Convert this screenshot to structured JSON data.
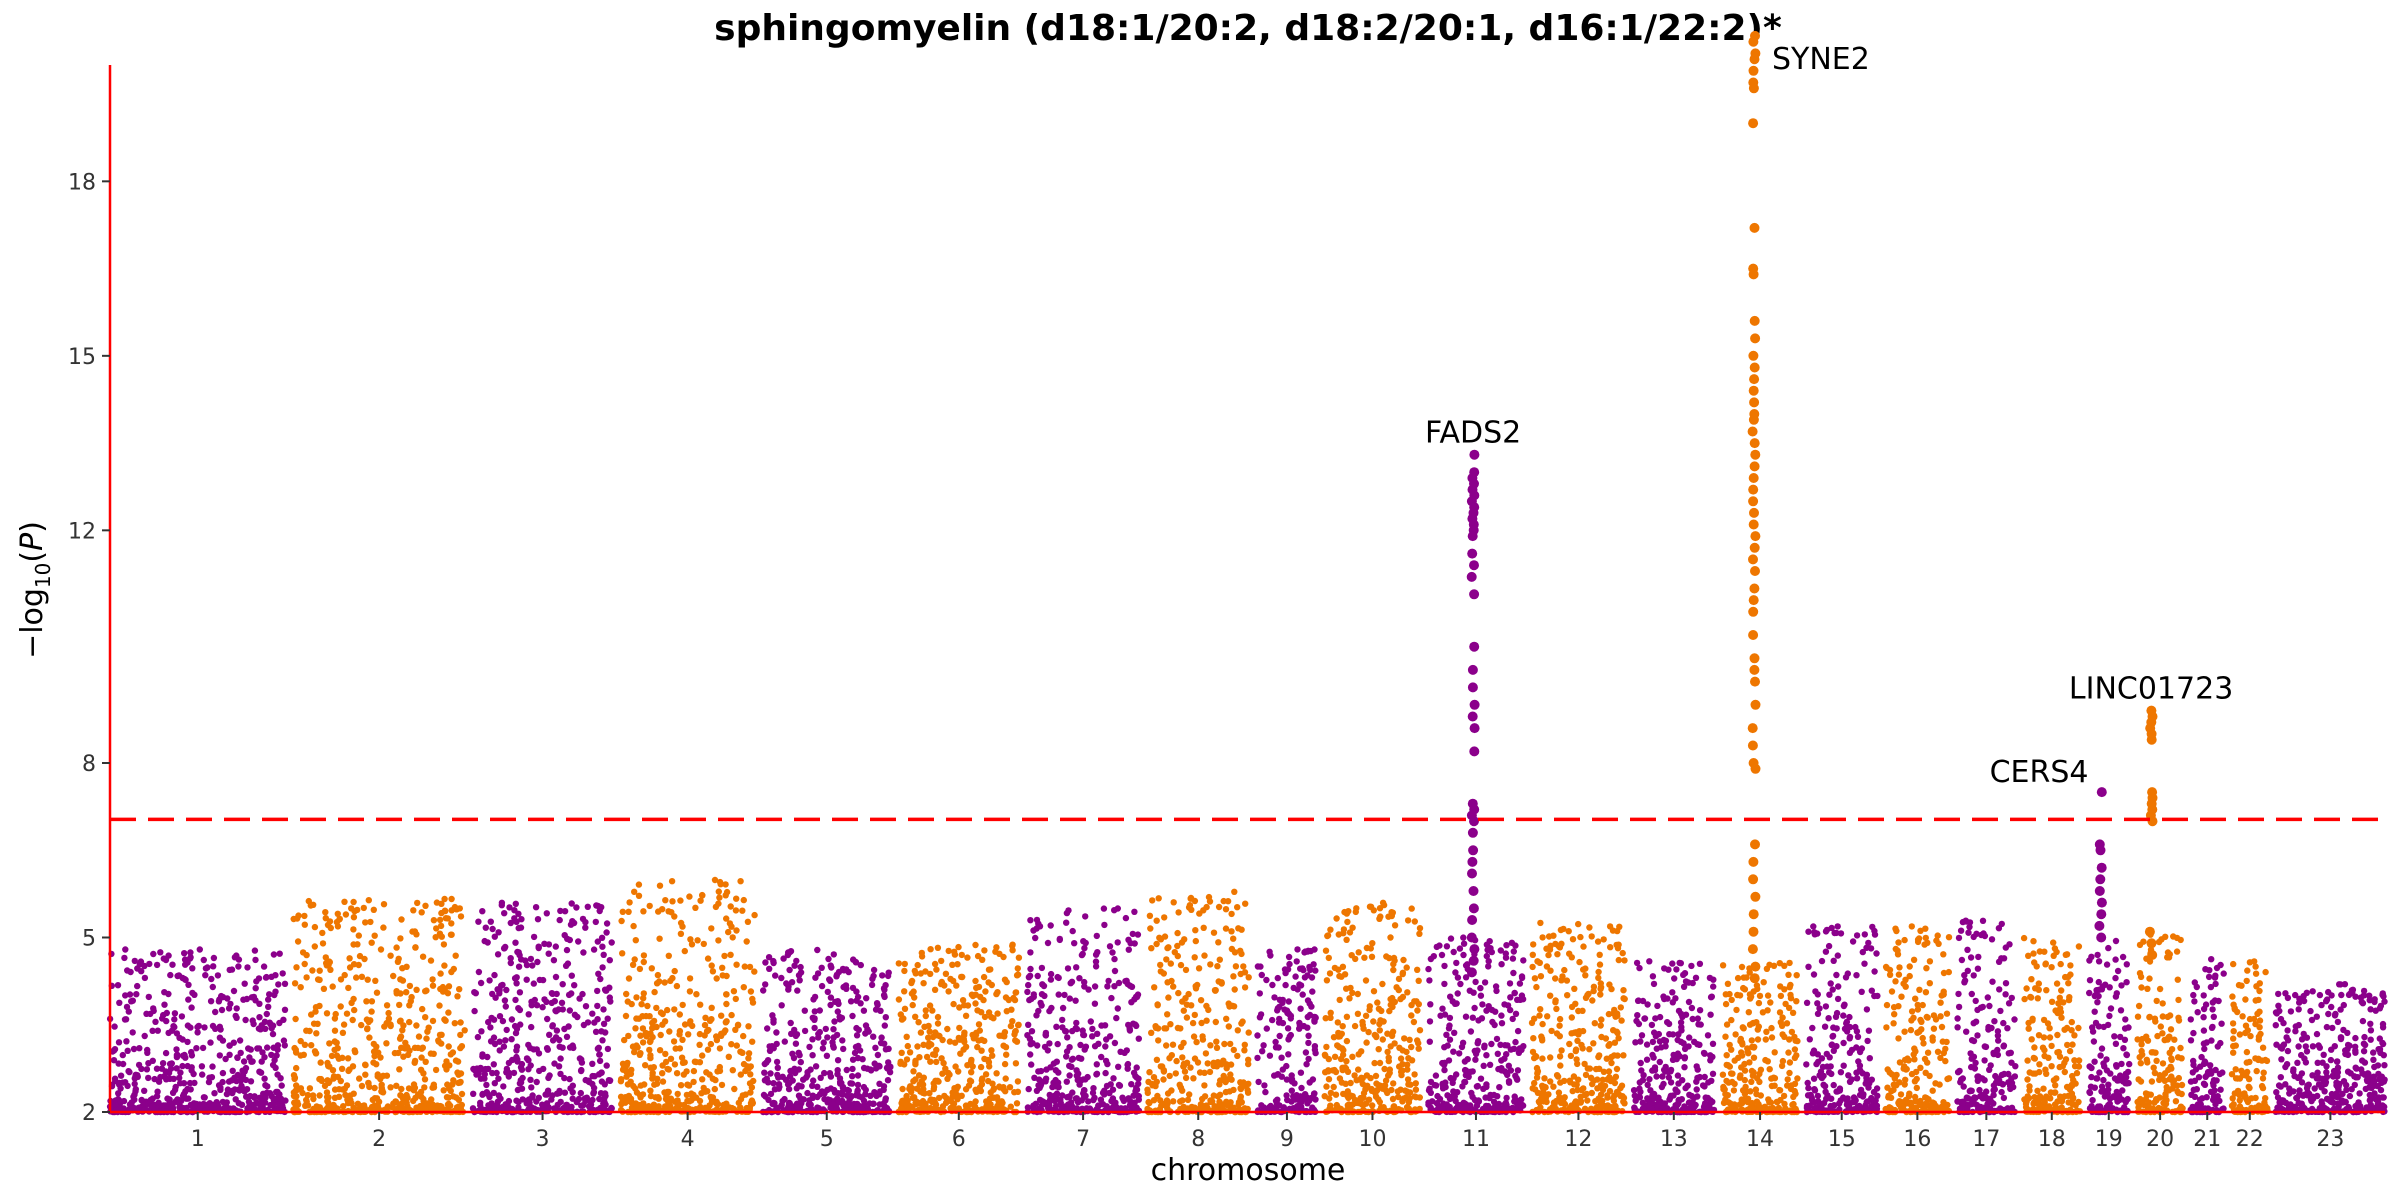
{
  "chart_data": {
    "type": "scatter",
    "subtype": "manhattan",
    "title": "sphingomyelin (d18:1/20:2, d18:2/20:1, d16:1/22:2)*",
    "xlabel": "chromosome",
    "ylabel_parts": [
      "−log",
      "10",
      "(",
      "P",
      ")"
    ],
    "ylim": [
      2,
      20
    ],
    "yticks": [
      2,
      5,
      8,
      12,
      15,
      18
    ],
    "significance_threshold": 7.03,
    "threshold_style": "dashed",
    "grid": false,
    "legend": "none",
    "colors": {
      "odd": "#8b008b",
      "even": "#ee7600",
      "threshold": "#ff0000",
      "axis": "#ff0000"
    },
    "chromosomes": [
      {
        "label": "1",
        "size": 249,
        "max_bg": 4.8
      },
      {
        "label": "2",
        "size": 243,
        "max_bg": 5.7
      },
      {
        "label": "3",
        "size": 198,
        "max_bg": 5.6
      },
      {
        "label": "4",
        "size": 191,
        "max_bg": 6.0
      },
      {
        "label": "5",
        "size": 181,
        "max_bg": 4.8
      },
      {
        "label": "6",
        "size": 171,
        "max_bg": 4.9
      },
      {
        "label": "7",
        "size": 159,
        "max_bg": 5.5
      },
      {
        "label": "8",
        "size": 145,
        "max_bg": 5.8
      },
      {
        "label": "9",
        "size": 84,
        "max_bg": 4.8
      },
      {
        "label": "10",
        "size": 136,
        "max_bg": 5.6
      },
      {
        "label": "11",
        "size": 135,
        "max_bg": 5.0
      },
      {
        "label": "12",
        "size": 133,
        "max_bg": 5.3
      },
      {
        "label": "13",
        "size": 115,
        "max_bg": 4.6
      },
      {
        "label": "14",
        "size": 107,
        "max_bg": 4.6
      },
      {
        "label": "15",
        "size": 102,
        "max_bg": 5.2
      },
      {
        "label": "16",
        "size": 90,
        "max_bg": 5.2
      },
      {
        "label": "17",
        "size": 83,
        "max_bg": 5.3
      },
      {
        "label": "18",
        "size": 80,
        "max_bg": 5.0
      },
      {
        "label": "19",
        "size": 59,
        "max_bg": 5.0
      },
      {
        "label": "20",
        "size": 64,
        "max_bg": 5.1
      },
      {
        "label": "21",
        "size": 47,
        "max_bg": 4.7
      },
      {
        "label": "22",
        "size": 51,
        "max_bg": 4.6
      },
      {
        "label": "23",
        "size": 155,
        "max_bg": 4.2
      }
    ],
    "peaks": [
      {
        "gene": "FADS2",
        "chr": "11",
        "pos": 0.47,
        "top": 13.3,
        "values": [
          13.3,
          13.0,
          12.9,
          12.8,
          12.7,
          12.6,
          12.5,
          12.4,
          12.3,
          12.2,
          12.1,
          12.0,
          11.9,
          11.6,
          11.4,
          11.2,
          10.9,
          10.0,
          9.6,
          9.3,
          9.0,
          8.8,
          8.6,
          8.2,
          7.3,
          7.2,
          7.1,
          7.0,
          6.8,
          6.5,
          6.3,
          6.1,
          5.8,
          5.5,
          5.3,
          5.0,
          4.8,
          4.6,
          4.4
        ]
      },
      {
        "gene": "SYNE2",
        "chr": "14",
        "pos": 0.42,
        "top": 20.5,
        "values": [
          20.5,
          20.4,
          20.2,
          20.1,
          19.9,
          19.7,
          19.6,
          19.0,
          17.2,
          16.5,
          16.4,
          15.6,
          15.3,
          15.0,
          14.8,
          14.6,
          14.4,
          14.2,
          14.0,
          13.9,
          13.7,
          13.5,
          13.3,
          13.1,
          12.9,
          12.7,
          12.5,
          12.3,
          12.1,
          11.9,
          11.7,
          11.5,
          11.3,
          11.0,
          10.8,
          10.6,
          10.2,
          9.8,
          9.6,
          9.4,
          9.0,
          8.6,
          8.3,
          8.0,
          7.9,
          6.6,
          6.3,
          6.0,
          5.7,
          5.4,
          5.1,
          4.8,
          4.5,
          4.3
        ]
      },
      {
        "gene": "CERS4",
        "chr": "19",
        "pos": 0.3,
        "top": 7.5,
        "values": [
          7.5,
          6.6,
          6.5,
          6.2,
          6.0,
          5.8,
          5.6,
          5.4,
          5.2,
          5.0
        ]
      },
      {
        "gene": "LINC01723",
        "chr": "20",
        "pos": 0.3,
        "top": 8.9,
        "values": [
          8.9,
          8.8,
          8.7,
          8.6,
          8.5,
          8.4,
          7.5,
          7.4,
          7.3,
          7.2,
          7.1,
          7.0,
          5.1,
          4.9,
          4.7
        ]
      }
    ]
  }
}
